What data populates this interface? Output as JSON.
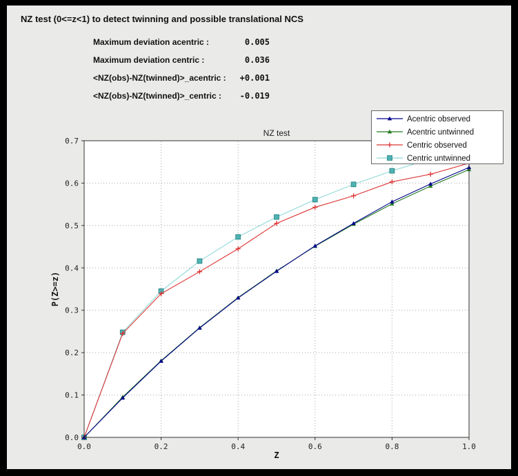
{
  "header": {
    "title": "NZ test (0<=z<1) to detect twinning and possible translational NCS"
  },
  "stats": {
    "rows": [
      {
        "label": "Maximum deviation acentric :",
        "value": "0.005"
      },
      {
        "label": "Maximum deviation centric :",
        "value": "0.036"
      },
      {
        "label": "<NZ(obs)-NZ(twinned)>_acentric :",
        "value": "+0.001"
      },
      {
        "label": "<NZ(obs)-NZ(twinned)>_centric :",
        "value": "-0.019"
      }
    ]
  },
  "chart_data": {
    "type": "line",
    "title": "NZ test",
    "xlabel": "Z",
    "ylabel": "P(Z>=z)",
    "xlim": [
      0.0,
      1.0
    ],
    "ylim": [
      0.0,
      0.7
    ],
    "xticks": [
      0.0,
      0.2,
      0.4,
      0.6,
      0.8,
      1.0
    ],
    "yticks": [
      0.0,
      0.1,
      0.2,
      0.3,
      0.4,
      0.5,
      0.6,
      0.7
    ],
    "grid": true,
    "legend_position": "top-right",
    "x": [
      0.0,
      0.1,
      0.2,
      0.3,
      0.4,
      0.5,
      0.6,
      0.7,
      0.8,
      0.9,
      1.0
    ],
    "series": [
      {
        "name": "Acentric observed",
        "color": "#00008b",
        "marker": "triangle",
        "marker_color": "#00008b",
        "values": [
          0.0,
          0.093,
          0.18,
          0.258,
          0.329,
          0.392,
          0.452,
          0.505,
          0.556,
          0.598,
          0.637
        ]
      },
      {
        "name": "Acentric untwinned",
        "color": "#1f7a1f",
        "marker": "triangle",
        "marker_color": "#1f7a1f",
        "values": [
          0.0,
          0.095,
          0.181,
          0.259,
          0.33,
          0.393,
          0.451,
          0.503,
          0.551,
          0.593,
          0.632
        ]
      },
      {
        "name": "Centric observed",
        "color": "#dd3333",
        "marker": "plus",
        "marker_color": "#dd3333",
        "values": [
          0.0,
          0.245,
          0.339,
          0.391,
          0.445,
          0.505,
          0.543,
          0.57,
          0.603,
          0.621,
          0.647
        ]
      },
      {
        "name": "Centric untwinned",
        "color": "#8fd8d8",
        "marker": "square",
        "marker_color": "#4fb2b2",
        "marker_edge": "#2e8b8b",
        "values": [
          0.0,
          0.248,
          0.345,
          0.416,
          0.473,
          0.52,
          0.561,
          0.597,
          0.629,
          0.657,
          0.683
        ]
      }
    ]
  }
}
